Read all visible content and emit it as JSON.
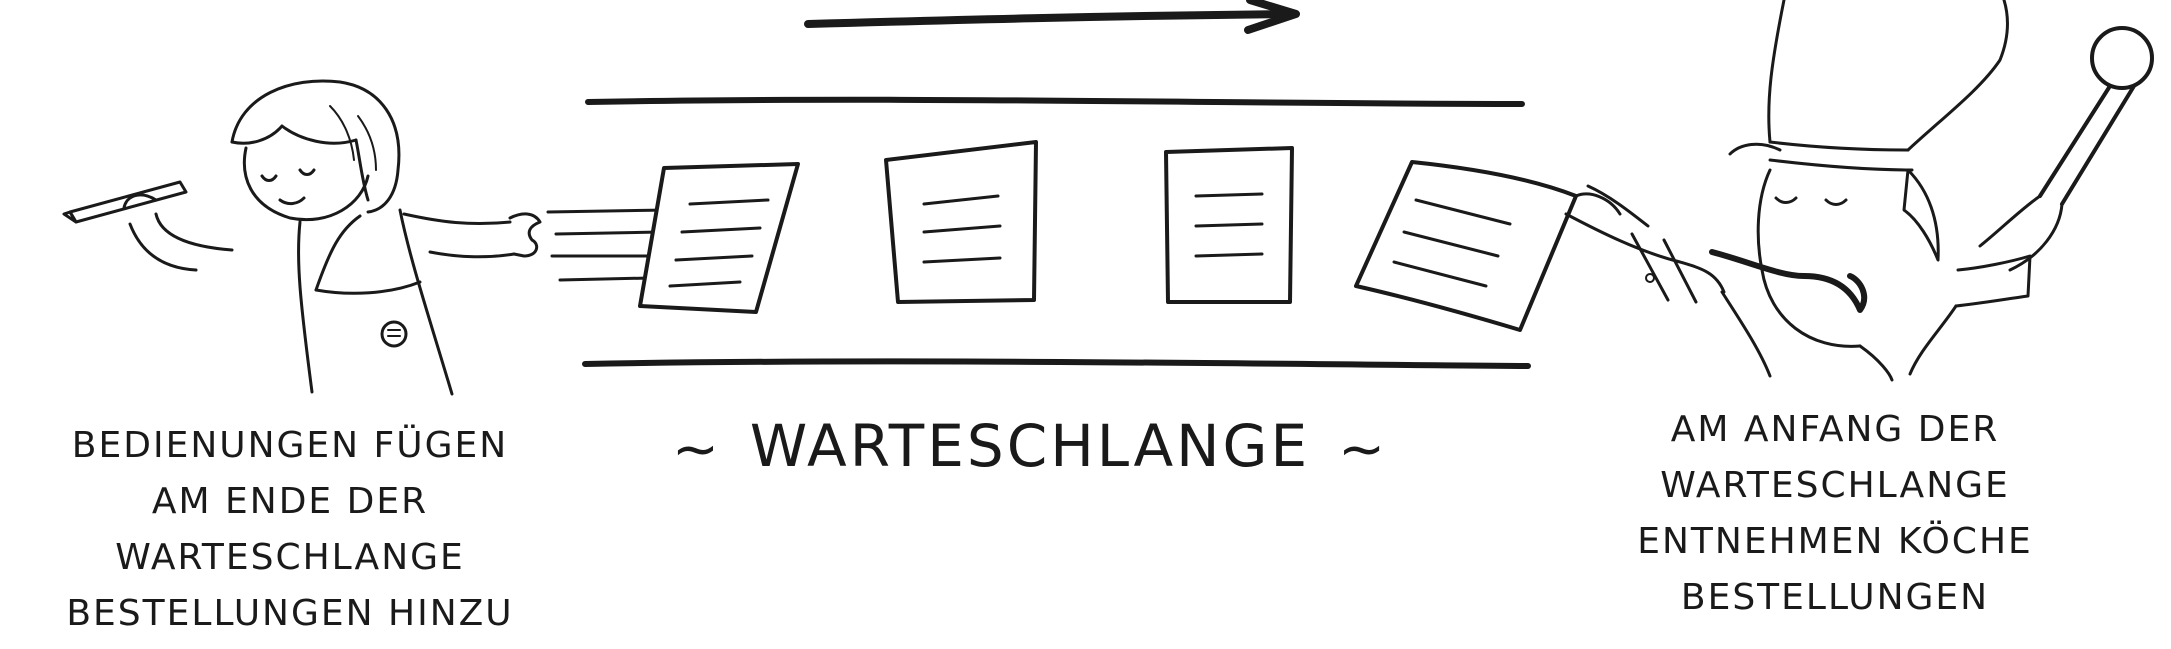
{
  "diagram": {
    "queue_label": "WARTESCHLANGE",
    "queue_decoration_left": "~",
    "queue_decoration_right": "~",
    "left_caption": [
      "BEDIENUNGEN FÜGEN",
      "AM ENDE DER",
      "WARTESCHLANGE",
      "BESTELLUNGEN HINZU"
    ],
    "right_caption": [
      "AM ANFANG DER",
      "WARTESCHLANGE",
      "ENTNEHMEN KÖCHE",
      "BESTELLUNGEN"
    ],
    "ink_color": "#1a1a1a",
    "background_color": "#ffffff",
    "figures": [
      "waiter-illustration",
      "chef-illustration"
    ],
    "queue_items": 4
  }
}
